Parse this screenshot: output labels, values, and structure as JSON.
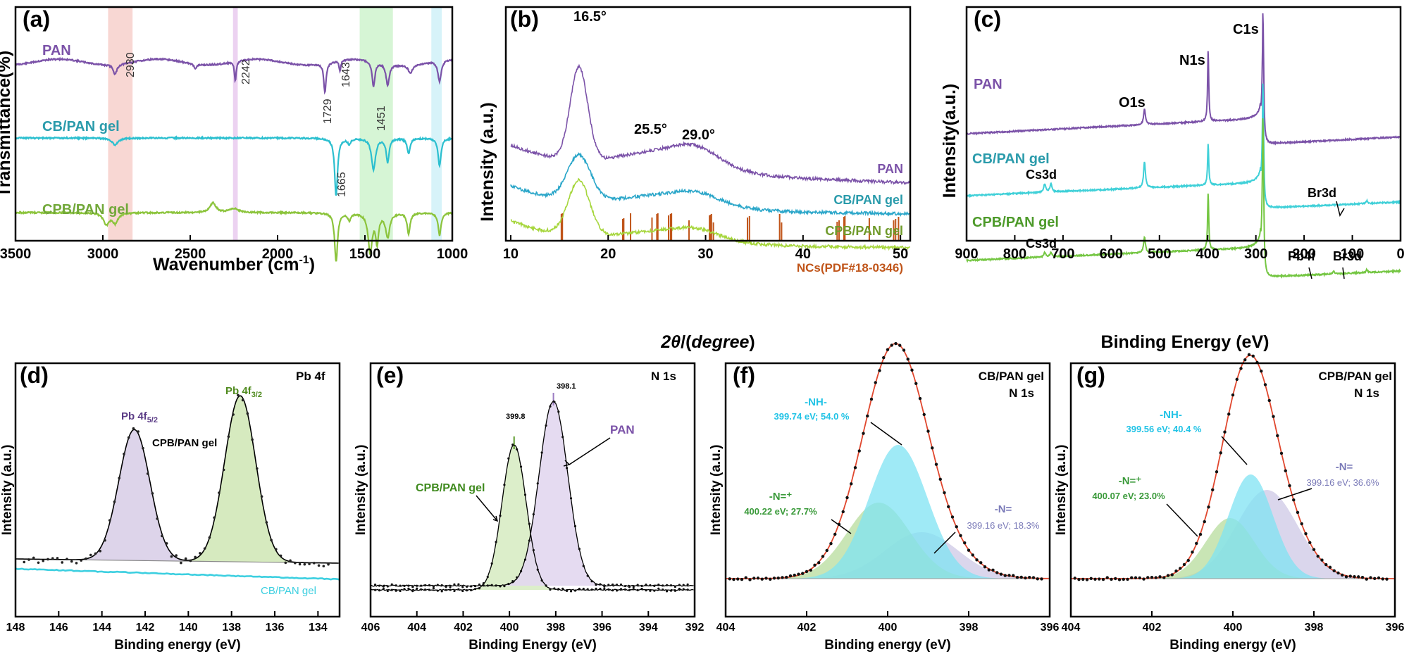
{
  "panels": {
    "a": {
      "tag": "(a)",
      "chart_data": {
        "type": "line",
        "xlabel": "Wavenumber (cm⁻¹)",
        "xlabel_main": "Wavenumber (cm",
        "xlabel_sup": "-1",
        "xlabel_end": ")",
        "ylabel": "Transmittance(%)",
        "xlim": [
          3500,
          1000
        ],
        "xticks": [
          "3500",
          "3000",
          "2500",
          "2000",
          "1500",
          "1000"
        ],
        "series": [
          {
            "name": "PAN",
            "color": "#7b52a8"
          },
          {
            "name": "CB/PAN gel",
            "color": "#2bbfcf"
          },
          {
            "name": "CPB/PAN gel",
            "color": "#8cc43c"
          }
        ],
        "annotations": [
          "2930",
          "2242",
          "1729",
          "1643",
          "1451",
          "1665"
        ],
        "bands": [
          {
            "range": [
              2970,
              2830
            ],
            "color": "#f6c9c4"
          },
          {
            "range": [
              2255,
              2228
            ],
            "color": "#e6c3ec"
          },
          {
            "range": [
              1530,
              1340
            ],
            "color": "#c8f2c7"
          },
          {
            "range": [
              1120,
              1060
            ],
            "color": "#c9eff7"
          }
        ]
      }
    },
    "b": {
      "tag": "(b)",
      "chart_data": {
        "type": "line",
        "xlabel": "2θ/(degree)",
        "xlabel_2": "2",
        "xlabel_theta": "θ",
        "xlabel_open": "/(",
        "xlabel_deg": "degree",
        "xlabel_close": ")",
        "ylabel": "Intensity (a.u.)",
        "xlim": [
          9.5,
          51
        ],
        "xticks": [
          "10",
          "20",
          "30",
          "40",
          "50"
        ],
        "series": [
          {
            "name": "PAN",
            "color": "#7b52a8"
          },
          {
            "name": "CB/PAN gel",
            "color": "#2aa6c9"
          },
          {
            "name": "CPB/PAN gel",
            "color": "#a6d63c"
          }
        ],
        "peaks": [
          "16.5°",
          "25.5°",
          "29.0°"
        ],
        "reference": {
          "name": "NCs(PDF#18-0346)",
          "color": "#c0551a",
          "positions": [
            15.2,
            15.3,
            21.5,
            21.6,
            22.3,
            24.5,
            25.0,
            25.1,
            26.2,
            26.4,
            26.5,
            28.3,
            30.4,
            30.5,
            30.6,
            30.8,
            34.3,
            34.5,
            37.6,
            37.8,
            43.5,
            43.7,
            44.2,
            44.3,
            46.8,
            49.3,
            49.5,
            49.8
          ]
        }
      }
    },
    "c": {
      "tag": "(c)",
      "chart_data": {
        "type": "line",
        "xlabel": "Binding Energy (eV)",
        "ylabel": "Intensity(a.u.)",
        "xlim": [
          900,
          0
        ],
        "xticks": [
          "900",
          "800",
          "700",
          "600",
          "500",
          "400",
          "300",
          "200",
          "100",
          "0"
        ],
        "series": [
          {
            "name": "PAN",
            "color": "#7b52a8"
          },
          {
            "name": "CB/PAN gel",
            "color": "#3fd0d8"
          },
          {
            "name": "CPB/PAN gel",
            "color": "#74c642"
          }
        ],
        "peaks": [
          "C1s",
          "N1s",
          "O1s",
          "Cs3d",
          "Br3d",
          "Cs3d",
          "Pb4f",
          "Br3d"
        ]
      }
    },
    "d": {
      "tag": "(d)",
      "title": "Pb 4f",
      "chart_data": {
        "type": "line",
        "xlabel": "Binding energy (eV)",
        "ylabel": "Intensity (a.u.)",
        "xlim": [
          148,
          133
        ],
        "xticks": [
          "148",
          "146",
          "144",
          "142",
          "140",
          "138",
          "136",
          "134"
        ],
        "peaks": [
          {
            "label": "Pb 4f",
            "sub": "5/2",
            "center": 142.5,
            "color": "#d7cce6"
          },
          {
            "label": "Pb 4f",
            "sub": "3/2",
            "center": 137.6,
            "color": "#cfe6b4"
          }
        ],
        "series": [
          {
            "name": "CPB/PAN gel",
            "color": "#000000"
          },
          {
            "name": "CB/PAN gel",
            "color": "#3ccfe0"
          }
        ]
      }
    },
    "e": {
      "tag": "(e)",
      "title": "N 1s",
      "chart_data": {
        "type": "line",
        "xlabel": "Binding Energy (eV)",
        "ylabel": "Intensity (a.u.)",
        "xlim": [
          406,
          392
        ],
        "xticks": [
          "406",
          "404",
          "402",
          "400",
          "398",
          "396",
          "394",
          "392"
        ],
        "series": [
          {
            "name": "PAN",
            "value": "398.1",
            "color": "#9b7cc2"
          },
          {
            "name": "CPB/PAN gel",
            "value": "399.8",
            "color": "#5b9a2a"
          }
        ]
      }
    },
    "f": {
      "tag": "(f)",
      "title_1": "CB/PAN gel",
      "title_2": "N 1s",
      "chart_data": {
        "type": "line",
        "xlabel": "Binding energy (eV)",
        "ylabel": "Intensity (a.u.)",
        "xlim": [
          404,
          396
        ],
        "xticks": [
          "404",
          "402",
          "400",
          "398",
          "396"
        ],
        "components": [
          {
            "name": "-NH-",
            "value": "399.74 eV; 54.0 %",
            "center": 399.74,
            "color": "#21c3e6"
          },
          {
            "name": "-N=⁺",
            "value": "400.22 eV; 27.7%",
            "center": 400.22,
            "color": "#3a9a3a"
          },
          {
            "name": "-N=",
            "value": "399.16 eV; 18.3%",
            "center": 399.16,
            "color": "#7a7ab8"
          }
        ]
      }
    },
    "g": {
      "tag": "(g)",
      "title_1": "CPB/PAN gel",
      "title_2": "N 1s",
      "chart_data": {
        "type": "line",
        "xlabel": "Binding energy (eV)",
        "ylabel": "Intensity (a.u.)",
        "xlim": [
          404,
          396
        ],
        "xticks": [
          "404",
          "402",
          "400",
          "398",
          "396"
        ],
        "components": [
          {
            "name": "-NH-",
            "value": "399.56 eV; 40.4 %",
            "center": 399.56,
            "color": "#21c3e6"
          },
          {
            "name": "-N=⁺",
            "value": "400.07 eV; 23.0%",
            "center": 400.07,
            "color": "#3a9a3a"
          },
          {
            "name": "-N=",
            "value": "399.16 eV; 36.6%",
            "center": 399.16,
            "color": "#7a7ab8"
          }
        ]
      }
    }
  }
}
